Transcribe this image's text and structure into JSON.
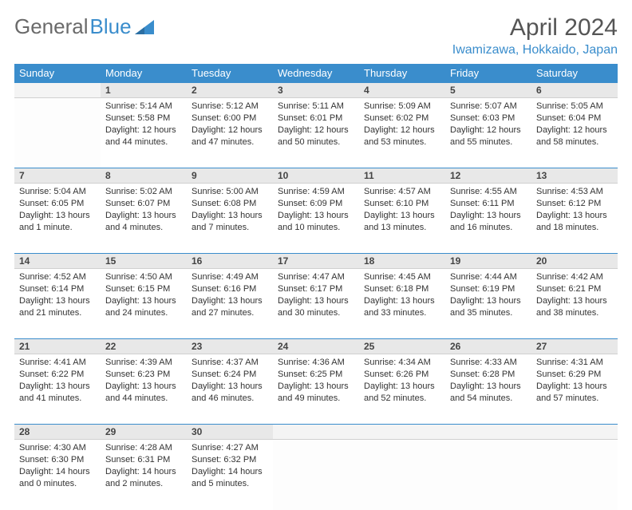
{
  "logo": {
    "part1": "General",
    "part2": "Blue"
  },
  "title": "April 2024",
  "location": "Iwamizawa, Hokkaido, Japan",
  "colors": {
    "header_bg": "#3a8dcc",
    "header_text": "#ffffff",
    "daynum_bg": "#e8e8e8",
    "border": "#3a8dcc",
    "logo_gray": "#6a6a6a",
    "logo_blue": "#3a8dcc"
  },
  "day_headers": [
    "Sunday",
    "Monday",
    "Tuesday",
    "Wednesday",
    "Thursday",
    "Friday",
    "Saturday"
  ],
  "weeks": [
    {
      "nums": [
        "",
        "1",
        "2",
        "3",
        "4",
        "5",
        "6"
      ],
      "cells": [
        null,
        {
          "sunrise": "Sunrise: 5:14 AM",
          "sunset": "Sunset: 5:58 PM",
          "daylight": "Daylight: 12 hours and 44 minutes."
        },
        {
          "sunrise": "Sunrise: 5:12 AM",
          "sunset": "Sunset: 6:00 PM",
          "daylight": "Daylight: 12 hours and 47 minutes."
        },
        {
          "sunrise": "Sunrise: 5:11 AM",
          "sunset": "Sunset: 6:01 PM",
          "daylight": "Daylight: 12 hours and 50 minutes."
        },
        {
          "sunrise": "Sunrise: 5:09 AM",
          "sunset": "Sunset: 6:02 PM",
          "daylight": "Daylight: 12 hours and 53 minutes."
        },
        {
          "sunrise": "Sunrise: 5:07 AM",
          "sunset": "Sunset: 6:03 PM",
          "daylight": "Daylight: 12 hours and 55 minutes."
        },
        {
          "sunrise": "Sunrise: 5:05 AM",
          "sunset": "Sunset: 6:04 PM",
          "daylight": "Daylight: 12 hours and 58 minutes."
        }
      ]
    },
    {
      "nums": [
        "7",
        "8",
        "9",
        "10",
        "11",
        "12",
        "13"
      ],
      "cells": [
        {
          "sunrise": "Sunrise: 5:04 AM",
          "sunset": "Sunset: 6:05 PM",
          "daylight": "Daylight: 13 hours and 1 minute."
        },
        {
          "sunrise": "Sunrise: 5:02 AM",
          "sunset": "Sunset: 6:07 PM",
          "daylight": "Daylight: 13 hours and 4 minutes."
        },
        {
          "sunrise": "Sunrise: 5:00 AM",
          "sunset": "Sunset: 6:08 PM",
          "daylight": "Daylight: 13 hours and 7 minutes."
        },
        {
          "sunrise": "Sunrise: 4:59 AM",
          "sunset": "Sunset: 6:09 PM",
          "daylight": "Daylight: 13 hours and 10 minutes."
        },
        {
          "sunrise": "Sunrise: 4:57 AM",
          "sunset": "Sunset: 6:10 PM",
          "daylight": "Daylight: 13 hours and 13 minutes."
        },
        {
          "sunrise": "Sunrise: 4:55 AM",
          "sunset": "Sunset: 6:11 PM",
          "daylight": "Daylight: 13 hours and 16 minutes."
        },
        {
          "sunrise": "Sunrise: 4:53 AM",
          "sunset": "Sunset: 6:12 PM",
          "daylight": "Daylight: 13 hours and 18 minutes."
        }
      ]
    },
    {
      "nums": [
        "14",
        "15",
        "16",
        "17",
        "18",
        "19",
        "20"
      ],
      "cells": [
        {
          "sunrise": "Sunrise: 4:52 AM",
          "sunset": "Sunset: 6:14 PM",
          "daylight": "Daylight: 13 hours and 21 minutes."
        },
        {
          "sunrise": "Sunrise: 4:50 AM",
          "sunset": "Sunset: 6:15 PM",
          "daylight": "Daylight: 13 hours and 24 minutes."
        },
        {
          "sunrise": "Sunrise: 4:49 AM",
          "sunset": "Sunset: 6:16 PM",
          "daylight": "Daylight: 13 hours and 27 minutes."
        },
        {
          "sunrise": "Sunrise: 4:47 AM",
          "sunset": "Sunset: 6:17 PM",
          "daylight": "Daylight: 13 hours and 30 minutes."
        },
        {
          "sunrise": "Sunrise: 4:45 AM",
          "sunset": "Sunset: 6:18 PM",
          "daylight": "Daylight: 13 hours and 33 minutes."
        },
        {
          "sunrise": "Sunrise: 4:44 AM",
          "sunset": "Sunset: 6:19 PM",
          "daylight": "Daylight: 13 hours and 35 minutes."
        },
        {
          "sunrise": "Sunrise: 4:42 AM",
          "sunset": "Sunset: 6:21 PM",
          "daylight": "Daylight: 13 hours and 38 minutes."
        }
      ]
    },
    {
      "nums": [
        "21",
        "22",
        "23",
        "24",
        "25",
        "26",
        "27"
      ],
      "cells": [
        {
          "sunrise": "Sunrise: 4:41 AM",
          "sunset": "Sunset: 6:22 PM",
          "daylight": "Daylight: 13 hours and 41 minutes."
        },
        {
          "sunrise": "Sunrise: 4:39 AM",
          "sunset": "Sunset: 6:23 PM",
          "daylight": "Daylight: 13 hours and 44 minutes."
        },
        {
          "sunrise": "Sunrise: 4:37 AM",
          "sunset": "Sunset: 6:24 PM",
          "daylight": "Daylight: 13 hours and 46 minutes."
        },
        {
          "sunrise": "Sunrise: 4:36 AM",
          "sunset": "Sunset: 6:25 PM",
          "daylight": "Daylight: 13 hours and 49 minutes."
        },
        {
          "sunrise": "Sunrise: 4:34 AM",
          "sunset": "Sunset: 6:26 PM",
          "daylight": "Daylight: 13 hours and 52 minutes."
        },
        {
          "sunrise": "Sunrise: 4:33 AM",
          "sunset": "Sunset: 6:28 PM",
          "daylight": "Daylight: 13 hours and 54 minutes."
        },
        {
          "sunrise": "Sunrise: 4:31 AM",
          "sunset": "Sunset: 6:29 PM",
          "daylight": "Daylight: 13 hours and 57 minutes."
        }
      ]
    },
    {
      "nums": [
        "28",
        "29",
        "30",
        "",
        "",
        "",
        ""
      ],
      "cells": [
        {
          "sunrise": "Sunrise: 4:30 AM",
          "sunset": "Sunset: 6:30 PM",
          "daylight": "Daylight: 14 hours and 0 minutes."
        },
        {
          "sunrise": "Sunrise: 4:28 AM",
          "sunset": "Sunset: 6:31 PM",
          "daylight": "Daylight: 14 hours and 2 minutes."
        },
        {
          "sunrise": "Sunrise: 4:27 AM",
          "sunset": "Sunset: 6:32 PM",
          "daylight": "Daylight: 14 hours and 5 minutes."
        },
        null,
        null,
        null,
        null
      ]
    }
  ]
}
